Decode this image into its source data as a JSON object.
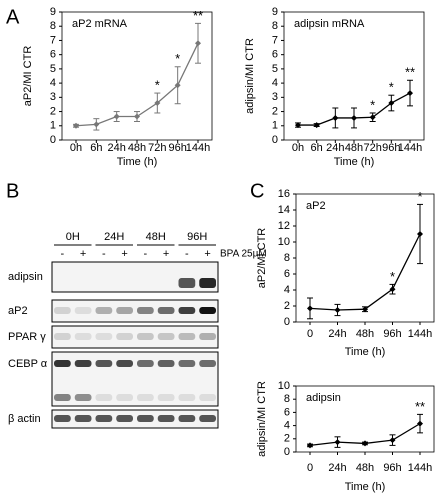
{
  "panels": [
    "A",
    "B",
    "C"
  ],
  "chart_data": [
    {
      "type": "line",
      "title": "aP2 mRNA",
      "x_label": "Time (h)",
      "y_label": "aP2/MI CTR",
      "categories": [
        "0h",
        "6h",
        "24h",
        "48h",
        "72h",
        "96h",
        "144h"
      ],
      "values": [
        1,
        1.1,
        1.65,
        1.65,
        2.6,
        3.85,
        6.8
      ],
      "errors": [
        0.1,
        0.4,
        0.35,
        0.35,
        0.7,
        1.3,
        1.4
      ],
      "significance": [
        null,
        null,
        null,
        null,
        "*",
        "*",
        "**"
      ],
      "color": "#777777",
      "ylim": [
        0,
        9
      ],
      "yticks": [
        0,
        1,
        2,
        3,
        4,
        5,
        6,
        7,
        8,
        9
      ]
    },
    {
      "type": "line",
      "title": "adipsin mRNA",
      "x_label": "Time (h)",
      "y_label": "adipsin/MI CTR",
      "categories": [
        "0h",
        "6h",
        "24h",
        "48h",
        "72h",
        "96h",
        "144h"
      ],
      "values": [
        1.05,
        1.05,
        1.55,
        1.55,
        1.6,
        2.6,
        3.3
      ],
      "errors": [
        0.15,
        0.1,
        0.7,
        0.7,
        0.3,
        0.55,
        0.9
      ],
      "significance": [
        null,
        null,
        null,
        null,
        "*",
        "*",
        "**"
      ],
      "color": "#000000",
      "ylim": [
        0,
        9
      ],
      "yticks": [
        0,
        1,
        2,
        3,
        4,
        5,
        6,
        7,
        8,
        9
      ]
    },
    {
      "type": "line",
      "title": "aP2",
      "x_label": "Time (h)",
      "y_label": "aP2/MI CTR",
      "categories": [
        "0",
        "24h",
        "48h",
        "96h",
        "144h"
      ],
      "values": [
        1.7,
        1.5,
        1.6,
        4.1,
        11.0
      ],
      "errors": [
        1.3,
        0.7,
        0.3,
        0.6,
        3.7
      ],
      "significance": [
        null,
        null,
        null,
        "*",
        "*"
      ],
      "color": "#000000",
      "ylim": [
        0,
        16
      ],
      "yticks": [
        0,
        2,
        4,
        6,
        8,
        10,
        12,
        14,
        16
      ]
    },
    {
      "type": "line",
      "title": "adipsin",
      "x_label": "Time (h)",
      "y_label": "adipsin/MI CTR",
      "categories": [
        "0",
        "24h",
        "48h",
        "96h",
        "144h"
      ],
      "values": [
        1,
        1.5,
        1.3,
        1.8,
        4.3
      ],
      "errors": [
        0.2,
        0.8,
        0.2,
        0.8,
        1.4
      ],
      "significance": [
        null,
        null,
        null,
        null,
        "**"
      ],
      "color": "#000000",
      "ylim": [
        0,
        10
      ],
      "yticks": [
        0,
        2,
        4,
        6,
        8,
        10
      ]
    }
  ],
  "blot": {
    "timepoints": [
      "0H",
      "24H",
      "48H",
      "96H"
    ],
    "signs": [
      "-",
      "+",
      "-",
      "+",
      "-",
      "+",
      "-",
      "+"
    ],
    "treatment": "BPA 25µM",
    "rows": [
      "adipsin",
      "aP2",
      "PPAR γ",
      "CEBP α",
      "β actin"
    ]
  }
}
